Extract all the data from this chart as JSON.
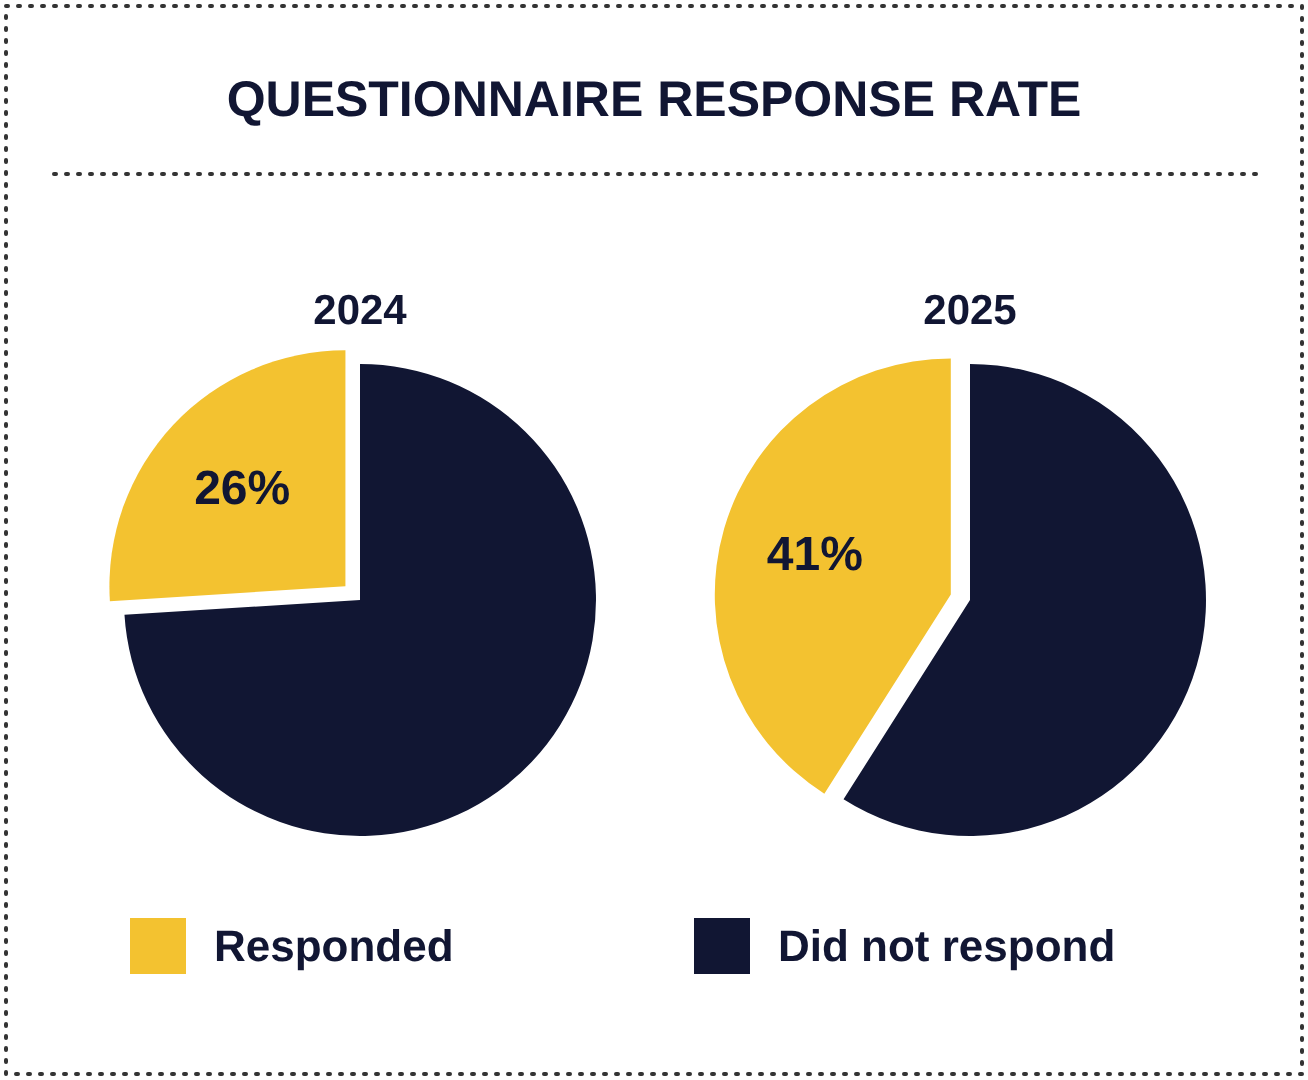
{
  "chart_data": {
    "type": "pie",
    "title": "QUESTIONNAIRE RESPONSE RATE",
    "categories": [
      "Responded",
      "Did not respond"
    ],
    "colors": [
      "#f3c230",
      "#111633"
    ],
    "legend": "bottom",
    "series": [
      {
        "name": "2024",
        "values": [
          26,
          74
        ],
        "value_labels": [
          "26%",
          null
        ]
      },
      {
        "name": "2025",
        "values": [
          41,
          59
        ],
        "value_labels": [
          "41%",
          null
        ]
      }
    ]
  }
}
